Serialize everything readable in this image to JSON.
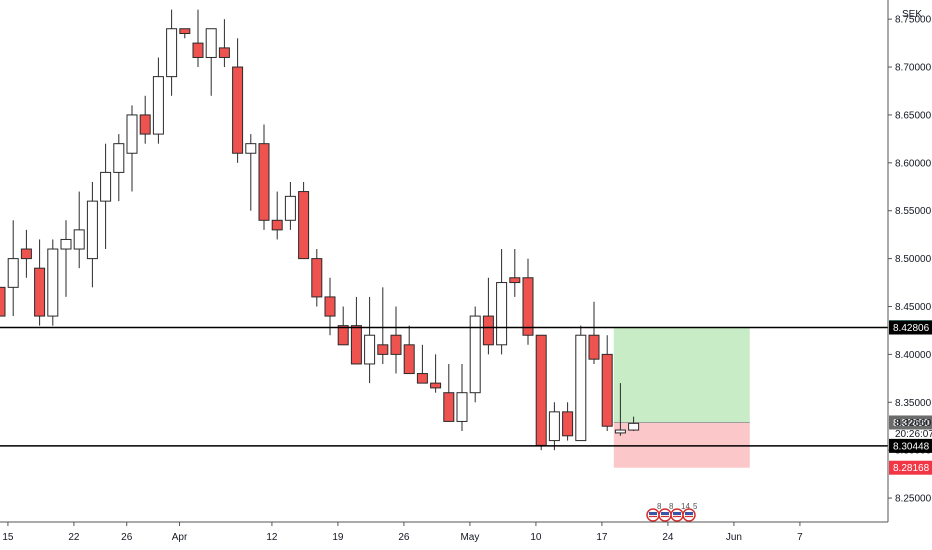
{
  "chart_data": {
    "type": "candlestick",
    "currency": "SEK",
    "ylim": [
      8.225,
      8.77
    ],
    "y_ticks": [
      "8.25000",
      "8.30000",
      "8.35000",
      "8.40000",
      "8.45000",
      "8.50000",
      "8.55000",
      "8.60000",
      "8.65000",
      "8.70000",
      "8.75000"
    ],
    "x_ticks": [
      {
        "label": "15",
        "index": 0.6
      },
      {
        "label": "22",
        "index": 5.6
      },
      {
        "label": "26",
        "index": 9.6
      },
      {
        "label": "Apr",
        "index": 13.6
      },
      {
        "label": "12",
        "index": 20.6
      },
      {
        "label": "19",
        "index": 25.6
      },
      {
        "label": "26",
        "index": 30.6
      },
      {
        "label": "May",
        "index": 35.6
      },
      {
        "label": "10",
        "index": 40.6
      },
      {
        "label": "17",
        "index": 45.6
      },
      {
        "label": "24",
        "index": 50.6
      },
      {
        "label": "Jun",
        "index": 55.6
      },
      {
        "label": "7",
        "index": 60.6
      }
    ],
    "candles": [
      [
        8.47,
        8.47,
        8.44,
        8.44
      ],
      [
        8.47,
        8.54,
        8.44,
        8.5
      ],
      [
        8.51,
        8.53,
        8.48,
        8.5
      ],
      [
        8.49,
        8.52,
        8.43,
        8.44
      ],
      [
        8.44,
        8.52,
        8.43,
        8.51
      ],
      [
        8.51,
        8.54,
        8.46,
        8.52
      ],
      [
        8.51,
        8.57,
        8.49,
        8.53
      ],
      [
        8.5,
        8.58,
        8.47,
        8.56
      ],
      [
        8.56,
        8.62,
        8.51,
        8.59
      ],
      [
        8.59,
        8.63,
        8.56,
        8.62
      ],
      [
        8.61,
        8.66,
        8.57,
        8.65
      ],
      [
        8.65,
        8.67,
        8.62,
        8.63
      ],
      [
        8.63,
        8.71,
        8.62,
        8.69
      ],
      [
        8.69,
        8.76,
        8.67,
        8.74
      ],
      [
        8.74,
        8.74,
        8.73,
        8.735
      ],
      [
        8.725,
        8.76,
        8.7,
        8.71
      ],
      [
        8.71,
        8.74,
        8.67,
        8.74
      ],
      [
        8.72,
        8.75,
        8.7,
        8.71
      ],
      [
        8.7,
        8.73,
        8.6,
        8.61
      ],
      [
        8.61,
        8.63,
        8.55,
        8.62
      ],
      [
        8.62,
        8.64,
        8.53,
        8.54
      ],
      [
        8.54,
        8.57,
        8.52,
        8.53
      ],
      [
        8.54,
        8.58,
        8.53,
        8.565
      ],
      [
        8.57,
        8.58,
        8.5,
        8.5
      ],
      [
        8.5,
        8.51,
        8.45,
        8.46
      ],
      [
        8.46,
        8.48,
        8.42,
        8.44
      ],
      [
        8.43,
        8.45,
        8.41,
        8.41
      ],
      [
        8.43,
        8.46,
        8.39,
        8.39
      ],
      [
        8.39,
        8.46,
        8.37,
        8.42
      ],
      [
        8.41,
        8.47,
        8.39,
        8.4
      ],
      [
        8.42,
        8.45,
        8.38,
        8.4
      ],
      [
        8.41,
        8.43,
        8.38,
        8.38
      ],
      [
        8.38,
        8.41,
        8.37,
        8.37
      ],
      [
        8.37,
        8.4,
        8.36,
        8.365
      ],
      [
        8.36,
        8.39,
        8.33,
        8.33
      ],
      [
        8.33,
        8.39,
        8.32,
        8.36
      ],
      [
        8.36,
        8.45,
        8.35,
        8.44
      ],
      [
        8.44,
        8.48,
        8.4,
        8.41
      ],
      [
        8.41,
        8.51,
        8.4,
        8.475
      ],
      [
        8.48,
        8.51,
        8.46,
        8.475
      ],
      [
        8.48,
        8.5,
        8.41,
        8.42
      ],
      [
        8.42,
        8.42,
        8.3,
        8.305
      ],
      [
        8.31,
        8.35,
        8.3,
        8.34
      ],
      [
        8.34,
        8.35,
        8.31,
        8.315
      ],
      [
        8.31,
        8.43,
        8.31,
        8.42
      ],
      [
        8.42,
        8.455,
        8.39,
        8.395
      ],
      [
        8.4,
        8.42,
        8.32,
        8.325
      ],
      [
        8.318,
        8.37,
        8.315,
        8.321
      ],
      [
        8.321,
        8.335,
        8.32,
        8.328
      ]
    ],
    "horizontal_lines": [
      "8.42806",
      "8.30448"
    ],
    "position": {
      "entry": 8.3289,
      "target": 8.42839,
      "stop": 8.28168
    },
    "price_tags": [
      {
        "label": "8.42839",
        "value": 8.42839,
        "color": "#26a69a"
      },
      {
        "label": "8.42806",
        "value": 8.42806,
        "color": "#000000"
      },
      {
        "label": "8.32890",
        "value": 8.3289,
        "color": "#6b6b6b"
      },
      {
        "label": "8.30448",
        "value": 8.30448,
        "color": "#000000"
      },
      {
        "label": "8.28168",
        "value": 8.28168,
        "color": "#f23645"
      }
    ],
    "last_price": "8.32660",
    "countdown": "20:26:07",
    "event_markers": [
      "8",
      "8",
      "14",
      "5"
    ],
    "colors": {
      "up_fill": "#ffffff",
      "down_fill": "#ef5350",
      "candle_border": "#2a2a2a",
      "target_zone": "#c8ecc6",
      "stop_zone": "#fbc7c9"
    }
  }
}
